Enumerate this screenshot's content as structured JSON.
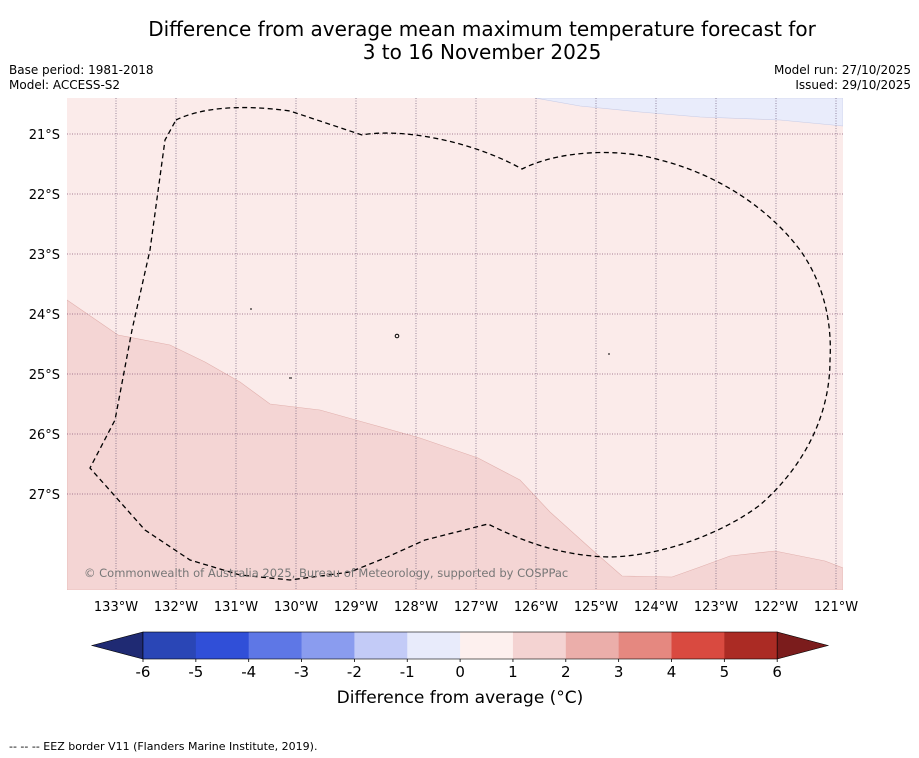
{
  "title": {
    "line1": "Difference from average mean maximum temperature forecast for",
    "line2": "3 to 16 November 2025"
  },
  "meta": {
    "base_period": "Base period: 1981-2018",
    "model": "Model: ACCESS-S2",
    "model_run": "Model run: 27/10/2025",
    "issued": "Issued: 29/10/2025"
  },
  "map": {
    "lat_labels": [
      "21°S",
      "22°S",
      "23°S",
      "24°S",
      "25°S",
      "26°S",
      "27°S"
    ],
    "lon_labels": [
      "133°W",
      "132°W",
      "131°W",
      "130°W",
      "129°W",
      "128°W",
      "127°W",
      "126°W",
      "125°W",
      "124°W",
      "123°W",
      "122°W",
      "121°W"
    ],
    "copyright": "© Commonwealth of Australia 2025, Bureau of Meteorology, supported by COSPPac",
    "colors": {
      "band_0_1": "#fbebea",
      "band_1_2": "#f4d5d4",
      "band_m1_0": "#e9ecfb",
      "grid": "#8a5a78",
      "eez": "#000000"
    }
  },
  "colorbar": {
    "ticks": [
      "-6",
      "-5",
      "-4",
      "-3",
      "-2",
      "-1",
      "0",
      "1",
      "2",
      "3",
      "4",
      "5",
      "6"
    ],
    "colors": [
      "#24348f",
      "#2a46b6",
      "#304fd8",
      "#5e77e6",
      "#8a9cef",
      "#c3cbf7",
      "#e8ebfb",
      "#fdf0ee",
      "#f4d3d2",
      "#ebaeaa",
      "#e58880",
      "#d94a40",
      "#ab2b24",
      "#7b1c1c"
    ],
    "low_extend_color": "#1f2a73",
    "label": "Difference from average (°C)"
  },
  "footer": "-- -- -- EEZ border V11 (Flanders Marine Institute, 2019)."
}
